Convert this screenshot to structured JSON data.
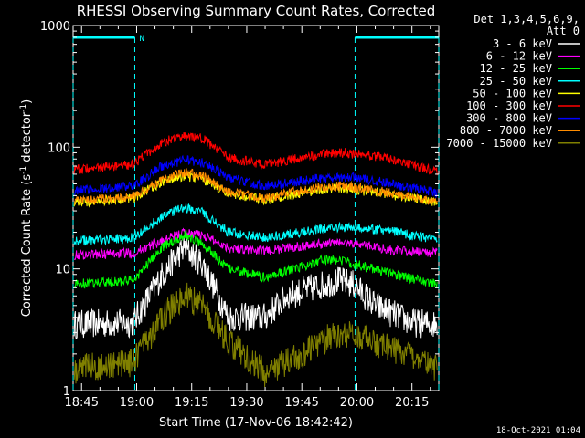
{
  "chart_data": {
    "type": "line",
    "title": "RHESSI Observing Summary Count Rates, Corrected",
    "xlabel": "Start Time (17-Nov-06 18:42:42)",
    "ylabel_parts": [
      "Corrected Count Rate (s",
      "-1",
      " detector",
      "-1",
      ")"
    ],
    "x_ticks": [
      "18:45",
      "19:00",
      "19:15",
      "19:30",
      "19:45",
      "20:00",
      "20:15"
    ],
    "x_tick_minutes": [
      0,
      15,
      30,
      45,
      60,
      75,
      90
    ],
    "x_range_minutes": [
      -2.3,
      97.3
    ],
    "y_scale": "log",
    "y_range": [
      1,
      1000
    ],
    "y_ticks": [
      "1",
      "10",
      "100",
      "1000"
    ],
    "y_tick_values": [
      1,
      10,
      100,
      1000
    ],
    "x_unit": "minutes after 18:45",
    "legend_header": [
      "Det 1,3,4,5,6,9,",
      "Att 0"
    ],
    "legend_position": "right",
    "timestamp": "18-Oct-2021 01:04",
    "night_marker_label": "N",
    "night_intervals_minutes": [
      [
        -2.3,
        14.5
      ],
      [
        74.5,
        97.3
      ]
    ],
    "series": [
      {
        "name": "3 - 6 keV",
        "color": "#ffffff",
        "points": [
          [
            -2,
            3.5
          ],
          [
            14,
            3.6
          ],
          [
            22,
            9
          ],
          [
            28,
            15
          ],
          [
            33,
            11
          ],
          [
            40,
            4
          ],
          [
            50,
            4
          ],
          [
            56,
            6
          ],
          [
            63,
            7
          ],
          [
            70,
            8
          ],
          [
            74,
            7.5
          ],
          [
            80,
            5
          ],
          [
            90,
            3.6
          ],
          [
            97,
            3.5
          ]
        ]
      },
      {
        "name": "6 - 12 keV",
        "color": "#ff00ff",
        "points": [
          [
            -2,
            13
          ],
          [
            14,
            13.5
          ],
          [
            22,
            17
          ],
          [
            28,
            20
          ],
          [
            33,
            19
          ],
          [
            40,
            15
          ],
          [
            50,
            14
          ],
          [
            60,
            15.5
          ],
          [
            70,
            16.5
          ],
          [
            76,
            16
          ],
          [
            86,
            14
          ],
          [
            97,
            13.5
          ]
        ]
      },
      {
        "name": "12 - 25 keV",
        "color": "#00ff00",
        "points": [
          [
            -2,
            7.5
          ],
          [
            14,
            8
          ],
          [
            22,
            15
          ],
          [
            28,
            19
          ],
          [
            33,
            16
          ],
          [
            40,
            10
          ],
          [
            50,
            8.5
          ],
          [
            58,
            10
          ],
          [
            66,
            12
          ],
          [
            72,
            11.5
          ],
          [
            82,
            9.5
          ],
          [
            97,
            7.5
          ]
        ]
      },
      {
        "name": "25 - 50 keV",
        "color": "#00ffff",
        "points": [
          [
            -2,
            17
          ],
          [
            14,
            18
          ],
          [
            22,
            27
          ],
          [
            28,
            32
          ],
          [
            33,
            29
          ],
          [
            40,
            20
          ],
          [
            50,
            18
          ],
          [
            60,
            20
          ],
          [
            70,
            22
          ],
          [
            76,
            22
          ],
          [
            86,
            20
          ],
          [
            97,
            17
          ]
        ]
      },
      {
        "name": "50 - 100 keV",
        "color": "#ffff00",
        "points": [
          [
            -2,
            35
          ],
          [
            14,
            38
          ],
          [
            22,
            52
          ],
          [
            28,
            58
          ],
          [
            33,
            55
          ],
          [
            40,
            42
          ],
          [
            50,
            37
          ],
          [
            60,
            42
          ],
          [
            68,
            46
          ],
          [
            74,
            45
          ],
          [
            86,
            40
          ],
          [
            97,
            35
          ]
        ]
      },
      {
        "name": "100 - 300 keV",
        "color": "#ff0000",
        "points": [
          [
            -2,
            65
          ],
          [
            14,
            72
          ],
          [
            22,
            110
          ],
          [
            28,
            125
          ],
          [
            33,
            118
          ],
          [
            40,
            82
          ],
          [
            50,
            72
          ],
          [
            58,
            80
          ],
          [
            66,
            88
          ],
          [
            72,
            90
          ],
          [
            82,
            82
          ],
          [
            97,
            63
          ]
        ]
      },
      {
        "name": "300 - 800 keV",
        "color": "#0000ff",
        "points": [
          [
            -2,
            44
          ],
          [
            14,
            48
          ],
          [
            22,
            70
          ],
          [
            28,
            78
          ],
          [
            33,
            75
          ],
          [
            40,
            56
          ],
          [
            50,
            48
          ],
          [
            58,
            52
          ],
          [
            66,
            56
          ],
          [
            72,
            57
          ],
          [
            82,
            52
          ],
          [
            97,
            42
          ]
        ]
      },
      {
        "name": "800 - 7000 keV",
        "color": "#ff8c00",
        "points": [
          [
            -2,
            36
          ],
          [
            14,
            39
          ],
          [
            22,
            54
          ],
          [
            28,
            62
          ],
          [
            33,
            58
          ],
          [
            40,
            43
          ],
          [
            50,
            38
          ],
          [
            58,
            43
          ],
          [
            66,
            47
          ],
          [
            72,
            48
          ],
          [
            82,
            43
          ],
          [
            97,
            35
          ]
        ]
      },
      {
        "name": "7000 - 15000 keV",
        "color": "#808000",
        "points": [
          [
            -2,
            1.5
          ],
          [
            14,
            1.7
          ],
          [
            22,
            4
          ],
          [
            28,
            6
          ],
          [
            33,
            5
          ],
          [
            40,
            2.5
          ],
          [
            50,
            1.4
          ],
          [
            60,
            2
          ],
          [
            68,
            2.8
          ],
          [
            74,
            3
          ],
          [
            84,
            2.2
          ],
          [
            97,
            1.5
          ]
        ]
      }
    ]
  }
}
